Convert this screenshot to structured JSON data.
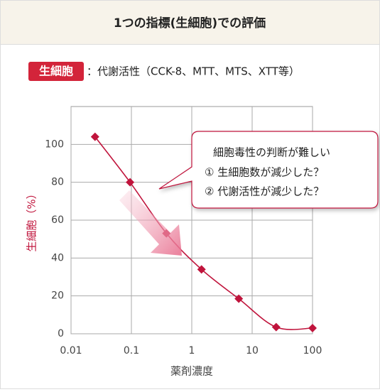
{
  "header": {
    "title": "1つの指標(生細胞)での評価"
  },
  "badge": "生細胞",
  "badge_note": "：代謝活性（CCK-8、MTT、MTS、XTT等）",
  "callout": [
    "細胞毒性の判断が難しい",
    "① 生細胞数が減少した？",
    "② 代謝活性が減少した？"
  ],
  "chart_data": {
    "type": "scatter",
    "x_label": "薬剤濃度",
    "y_label": "生細胞（%）",
    "x": [
      0.025,
      0.095,
      0.38,
      1.45,
      6,
      25,
      100
    ],
    "series": [
      {
        "color": "#c0143c",
        "values": [
          104,
          80,
          53,
          34,
          18.5,
          3.5,
          3
        ]
      }
    ],
    "xlim": [
      0.01,
      100
    ],
    "xticks": [
      0.01,
      0.1,
      1,
      10,
      100
    ],
    "xscale": "log",
    "ylim": [
      0,
      120
    ],
    "yticks": [
      0,
      20,
      40,
      60,
      80,
      100
    ],
    "grid": true,
    "line": "smooth"
  }
}
